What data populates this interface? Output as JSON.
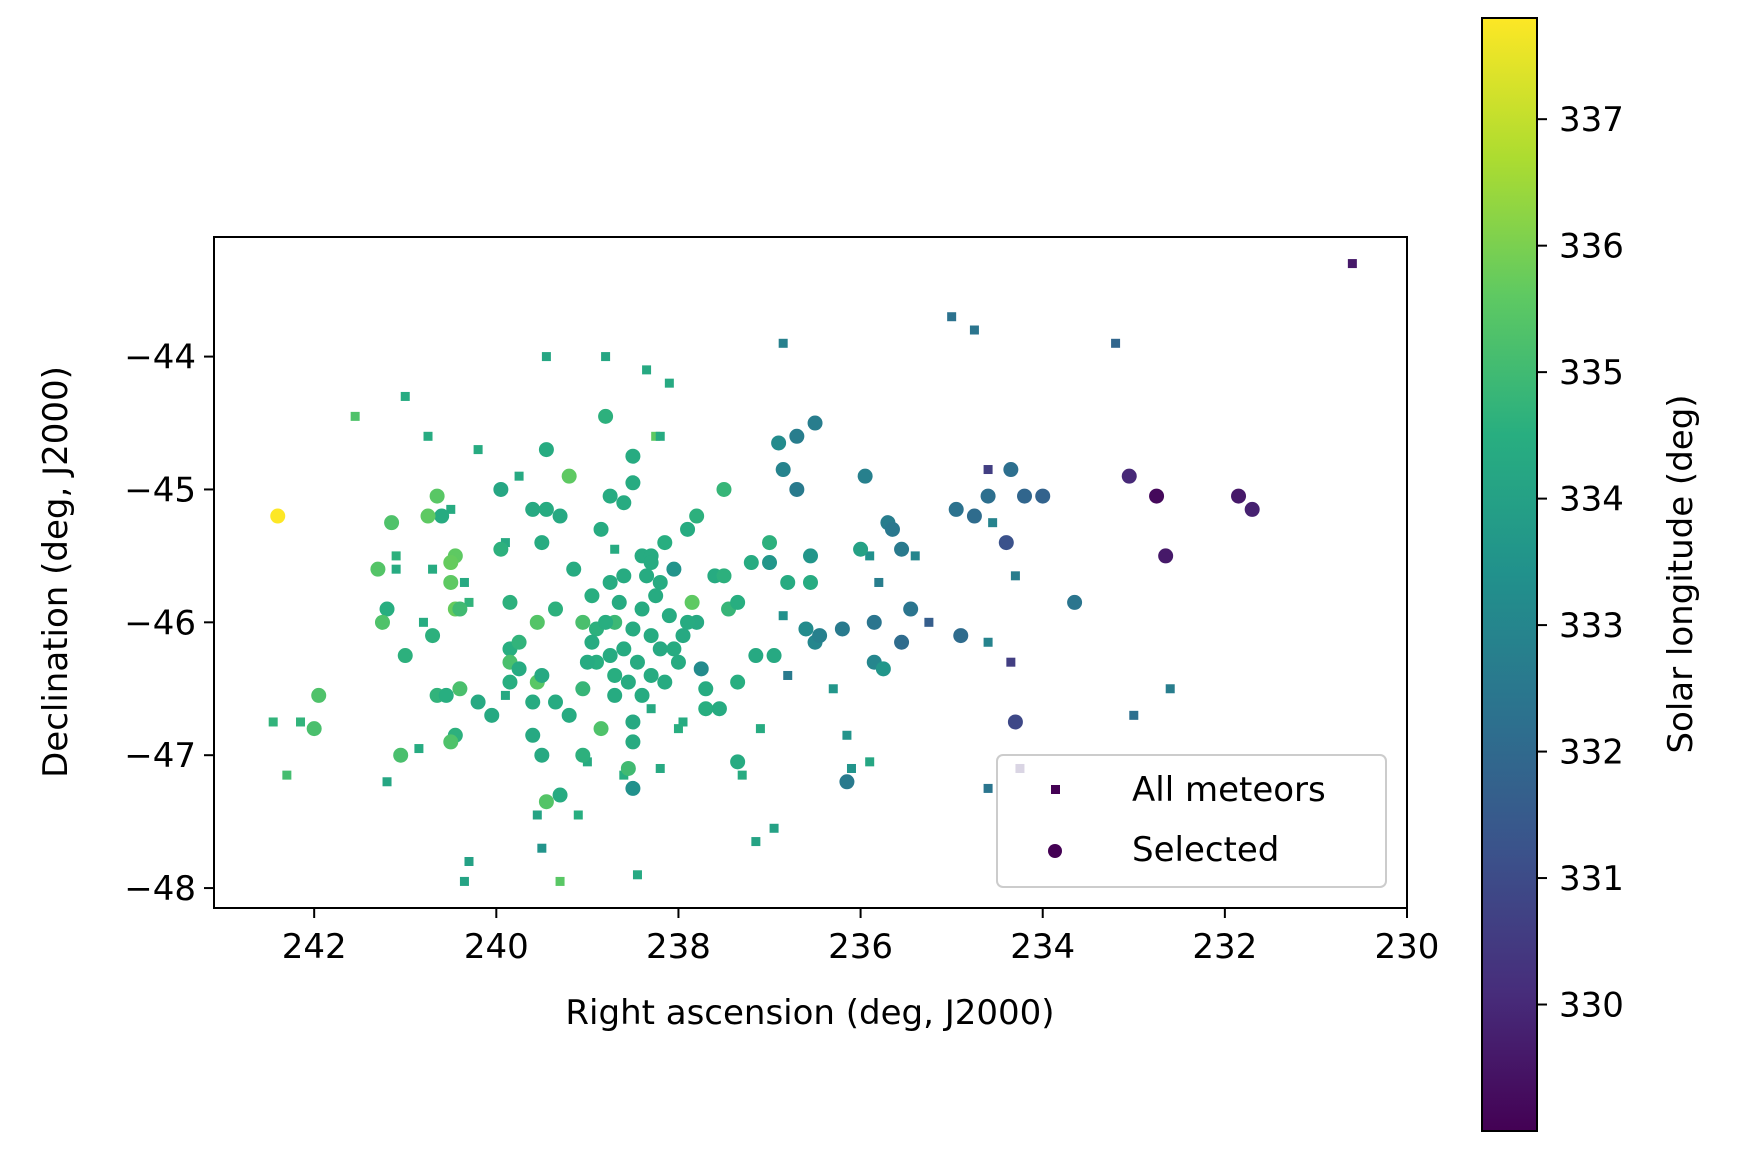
{
  "chart_data": {
    "type": "scatter",
    "xlabel": "Right ascension (deg, J2000)",
    "ylabel": "Declination (deg, J2000)",
    "xlim": [
      243.1,
      230.0
    ],
    "ylim": [
      -48.15,
      -43.1
    ],
    "x_inverted": true,
    "x_ticks": [
      242,
      240,
      238,
      236,
      234,
      232,
      230
    ],
    "y_ticks": [
      -44,
      -45,
      -46,
      -47,
      -48
    ],
    "x_tick_labels": [
      "242",
      "240",
      "238",
      "236",
      "234",
      "232",
      "230"
    ],
    "y_tick_labels": [
      "−44",
      "−45",
      "−46",
      "−47",
      "−48"
    ],
    "colorbar": {
      "label": "Solar longitude (deg)",
      "colormap": "viridis",
      "range": [
        329.0,
        337.8
      ],
      "ticks": [
        330,
        331,
        332,
        333,
        334,
        335,
        336,
        337
      ],
      "tick_labels": [
        "330",
        "331",
        "332",
        "333",
        "334",
        "335",
        "336",
        "337"
      ]
    },
    "legend": {
      "position": "lower-right"
    },
    "series": [
      {
        "name": "All meteors",
        "marker": "square",
        "points": [
          [
            230.6,
            -43.3,
            329.6
          ],
          [
            235.0,
            -43.7,
            332.3
          ],
          [
            234.75,
            -43.8,
            332.4
          ],
          [
            236.85,
            -43.9,
            332.8
          ],
          [
            233.2,
            -43.9,
            331.9
          ],
          [
            239.45,
            -44.0,
            334.2
          ],
          [
            238.8,
            -44.0,
            334.2
          ],
          [
            238.35,
            -44.1,
            334.3
          ],
          [
            238.1,
            -44.2,
            334.3
          ],
          [
            241.0,
            -44.3,
            334.4
          ],
          [
            241.55,
            -44.45,
            335.3
          ],
          [
            238.25,
            -44.6,
            335.6
          ],
          [
            238.2,
            -44.6,
            334.4
          ],
          [
            240.75,
            -44.6,
            334.4
          ],
          [
            240.2,
            -44.7,
            334.4
          ],
          [
            234.6,
            -44.85,
            330.6
          ],
          [
            239.75,
            -44.9,
            334.3
          ],
          [
            240.5,
            -45.15,
            334.4
          ],
          [
            234.55,
            -45.25,
            332.9
          ],
          [
            239.9,
            -45.4,
            334.3
          ],
          [
            238.7,
            -45.45,
            334.4
          ],
          [
            241.1,
            -45.5,
            334.6
          ],
          [
            235.9,
            -45.5,
            333.4
          ],
          [
            235.4,
            -45.5,
            333.0
          ],
          [
            241.1,
            -45.6,
            334.4
          ],
          [
            240.7,
            -45.6,
            334.4
          ],
          [
            234.3,
            -45.65,
            332.7
          ],
          [
            240.35,
            -45.7,
            334.3
          ],
          [
            235.8,
            -45.7,
            332.7
          ],
          [
            240.3,
            -45.85,
            334.7
          ],
          [
            236.85,
            -45.95,
            333.4
          ],
          [
            235.25,
            -46.0,
            331.6
          ],
          [
            240.8,
            -46.0,
            334.4
          ],
          [
            234.6,
            -46.15,
            332.9
          ],
          [
            234.35,
            -46.3,
            330.6
          ],
          [
            236.8,
            -46.4,
            332.6
          ],
          [
            236.3,
            -46.5,
            333.6
          ],
          [
            239.9,
            -46.55,
            334.3
          ],
          [
            238.3,
            -46.65,
            334.3
          ],
          [
            232.6,
            -46.5,
            332.7
          ],
          [
            233.0,
            -46.7,
            332.2
          ],
          [
            237.95,
            -46.75,
            334.4
          ],
          [
            242.45,
            -46.75,
            334.7
          ],
          [
            242.15,
            -46.75,
            334.7
          ],
          [
            237.1,
            -46.8,
            334.4
          ],
          [
            238.0,
            -46.8,
            334.5
          ],
          [
            236.15,
            -46.85,
            333.5
          ],
          [
            240.85,
            -46.95,
            334.4
          ],
          [
            241.2,
            -47.2,
            334.2
          ],
          [
            239.0,
            -47.05,
            334.4
          ],
          [
            238.2,
            -47.1,
            334.3
          ],
          [
            236.1,
            -47.1,
            333.5
          ],
          [
            235.9,
            -47.05,
            334.2
          ],
          [
            238.6,
            -47.15,
            334.5
          ],
          [
            237.3,
            -47.15,
            334.4
          ],
          [
            234.25,
            -47.1,
            330.1
          ],
          [
            234.6,
            -47.25,
            332.4
          ],
          [
            242.3,
            -47.15,
            335.1
          ],
          [
            236.95,
            -47.55,
            334.0
          ],
          [
            239.55,
            -47.45,
            334.1
          ],
          [
            239.1,
            -47.45,
            334.5
          ],
          [
            237.15,
            -47.65,
            334.1
          ],
          [
            239.5,
            -47.7,
            333.5
          ],
          [
            240.3,
            -47.8,
            334.0
          ],
          [
            240.35,
            -47.95,
            334.1
          ],
          [
            238.45,
            -47.9,
            334.3
          ],
          [
            239.3,
            -47.95,
            335.5
          ]
        ]
      },
      {
        "name": "Selected",
        "marker": "circle",
        "points": [
          [
            242.4,
            -45.2,
            337.8
          ],
          [
            241.95,
            -46.55,
            335.3
          ],
          [
            242.0,
            -46.8,
            335.2
          ],
          [
            241.15,
            -45.25,
            335.3
          ],
          [
            241.3,
            -45.6,
            335.4
          ],
          [
            241.2,
            -45.9,
            334.5
          ],
          [
            241.25,
            -46.0,
            335.3
          ],
          [
            241.0,
            -46.25,
            334.6
          ],
          [
            240.65,
            -45.05,
            335.5
          ],
          [
            240.6,
            -45.2,
            334.4
          ],
          [
            240.75,
            -45.2,
            335.6
          ],
          [
            240.45,
            -45.5,
            335.6
          ],
          [
            240.5,
            -45.55,
            335.7
          ],
          [
            240.5,
            -45.7,
            335.6
          ],
          [
            240.45,
            -45.9,
            335.7
          ],
          [
            240.4,
            -45.9,
            335.0
          ],
          [
            240.7,
            -46.1,
            334.6
          ],
          [
            240.65,
            -46.55,
            334.7
          ],
          [
            240.55,
            -46.55,
            334.5
          ],
          [
            240.4,
            -46.5,
            335.2
          ],
          [
            240.45,
            -46.85,
            334.6
          ],
          [
            240.5,
            -46.9,
            335.3
          ],
          [
            240.2,
            -46.6,
            334.3
          ],
          [
            240.05,
            -46.7,
            334.3
          ],
          [
            241.05,
            -47.0,
            335.2
          ],
          [
            239.95,
            -45.0,
            334.2
          ],
          [
            239.95,
            -45.45,
            334.6
          ],
          [
            239.45,
            -44.7,
            334.4
          ],
          [
            239.6,
            -45.15,
            334.3
          ],
          [
            239.45,
            -45.15,
            334.4
          ],
          [
            239.5,
            -45.4,
            334.4
          ],
          [
            239.3,
            -45.2,
            334.3
          ],
          [
            239.2,
            -44.9,
            335.6
          ],
          [
            239.85,
            -45.85,
            334.6
          ],
          [
            239.85,
            -46.2,
            334.5
          ],
          [
            239.85,
            -46.3,
            335.2
          ],
          [
            239.85,
            -46.45,
            334.5
          ],
          [
            239.75,
            -46.15,
            334.7
          ],
          [
            239.75,
            -46.35,
            334.4
          ],
          [
            239.55,
            -46.45,
            335.5
          ],
          [
            239.55,
            -46.0,
            335.4
          ],
          [
            239.5,
            -46.4,
            334.3
          ],
          [
            239.5,
            -47.0,
            334.3
          ],
          [
            239.45,
            -47.35,
            335.4
          ],
          [
            239.6,
            -46.85,
            334.3
          ],
          [
            239.6,
            -46.6,
            334.4
          ],
          [
            239.35,
            -45.9,
            334.6
          ],
          [
            239.35,
            -46.6,
            334.4
          ],
          [
            239.3,
            -47.3,
            334.4
          ],
          [
            239.2,
            -46.7,
            334.4
          ],
          [
            239.05,
            -46.5,
            334.8
          ],
          [
            239.05,
            -46.0,
            335.2
          ],
          [
            239.05,
            -47.0,
            334.6
          ],
          [
            239.15,
            -45.6,
            334.4
          ],
          [
            238.95,
            -45.8,
            334.5
          ],
          [
            238.85,
            -45.3,
            334.4
          ],
          [
            238.8,
            -44.45,
            334.6
          ],
          [
            238.75,
            -45.05,
            334.4
          ],
          [
            238.85,
            -46.8,
            335.3
          ],
          [
            238.9,
            -46.05,
            334.6
          ],
          [
            238.7,
            -46.0,
            334.9
          ],
          [
            238.7,
            -46.4,
            334.5
          ],
          [
            238.6,
            -45.1,
            334.4
          ],
          [
            238.5,
            -44.95,
            334.4
          ],
          [
            238.5,
            -44.75,
            334.4
          ],
          [
            238.5,
            -46.75,
            334.3
          ],
          [
            238.5,
            -46.9,
            334.4
          ],
          [
            238.5,
            -47.25,
            333.4
          ],
          [
            238.55,
            -47.1,
            335.0
          ],
          [
            238.4,
            -45.5,
            334.4
          ],
          [
            238.3,
            -45.5,
            334.4
          ],
          [
            238.2,
            -45.7,
            334.4
          ],
          [
            238.15,
            -45.4,
            334.5
          ],
          [
            238.05,
            -45.6,
            333.5
          ],
          [
            237.9,
            -45.3,
            334.4
          ],
          [
            237.85,
            -45.85,
            335.6
          ],
          [
            237.8,
            -45.2,
            334.6
          ],
          [
            237.8,
            -46.0,
            334.3
          ],
          [
            237.75,
            -46.35,
            333.2
          ],
          [
            237.7,
            -46.5,
            334.4
          ],
          [
            237.7,
            -46.65,
            334.5
          ],
          [
            237.6,
            -45.65,
            334.4
          ],
          [
            237.55,
            -46.65,
            334.4
          ],
          [
            237.5,
            -45.0,
            334.8
          ],
          [
            237.5,
            -45.65,
            334.6
          ],
          [
            237.45,
            -45.9,
            334.8
          ],
          [
            237.35,
            -45.85,
            334.5
          ],
          [
            237.35,
            -46.45,
            334.5
          ],
          [
            237.35,
            -47.05,
            334.4
          ],
          [
            237.2,
            -45.55,
            334.4
          ],
          [
            237.15,
            -46.25,
            334.3
          ],
          [
            237.0,
            -45.4,
            334.6
          ],
          [
            237.0,
            -45.55,
            333.6
          ],
          [
            236.95,
            -46.25,
            334.3
          ],
          [
            236.9,
            -44.65,
            333.2
          ],
          [
            236.85,
            -44.85,
            332.9
          ],
          [
            236.7,
            -45.0,
            332.6
          ],
          [
            236.7,
            -44.6,
            332.7
          ],
          [
            236.8,
            -45.7,
            334.4
          ],
          [
            236.55,
            -45.7,
            334.4
          ],
          [
            236.55,
            -45.5,
            333.6
          ],
          [
            236.5,
            -44.5,
            332.7
          ],
          [
            236.6,
            -46.05,
            333.2
          ],
          [
            236.5,
            -46.15,
            333.0
          ],
          [
            236.45,
            -46.1,
            332.8
          ],
          [
            236.2,
            -46.05,
            332.6
          ],
          [
            236.15,
            -47.2,
            332.6
          ],
          [
            236.0,
            -45.45,
            334.0
          ],
          [
            235.95,
            -44.9,
            332.8
          ],
          [
            235.85,
            -46.3,
            333.0
          ],
          [
            235.75,
            -46.35,
            333.6
          ],
          [
            235.7,
            -45.25,
            332.7
          ],
          [
            235.65,
            -45.3,
            332.5
          ],
          [
            235.55,
            -45.45,
            332.6
          ],
          [
            235.45,
            -45.9,
            332.4
          ],
          [
            235.55,
            -46.15,
            332.1
          ],
          [
            235.85,
            -46.0,
            332.4
          ],
          [
            234.95,
            -45.15,
            332.3
          ],
          [
            234.75,
            -45.2,
            332.1
          ],
          [
            234.6,
            -45.05,
            332.2
          ],
          [
            234.9,
            -46.1,
            332.1
          ],
          [
            234.4,
            -45.4,
            331.2
          ],
          [
            234.3,
            -46.75,
            330.9
          ],
          [
            234.35,
            -44.85,
            332.2
          ],
          [
            234.2,
            -45.05,
            331.9
          ],
          [
            234.0,
            -45.05,
            331.8
          ],
          [
            233.65,
            -45.85,
            332.4
          ],
          [
            233.05,
            -44.9,
            330.0
          ],
          [
            232.75,
            -45.05,
            329.2
          ],
          [
            232.65,
            -45.5,
            329.6
          ],
          [
            231.85,
            -45.05,
            329.6
          ],
          [
            231.7,
            -45.15,
            329.8
          ],
          [
            238.5,
            -46.05,
            334.4
          ],
          [
            238.3,
            -46.1,
            334.4
          ],
          [
            238.4,
            -45.9,
            334.4
          ],
          [
            238.6,
            -46.2,
            334.4
          ],
          [
            238.2,
            -46.2,
            334.3
          ],
          [
            238.1,
            -45.95,
            334.4
          ],
          [
            237.95,
            -46.1,
            334.3
          ],
          [
            238.45,
            -46.3,
            334.4
          ],
          [
            238.75,
            -45.7,
            334.4
          ],
          [
            238.25,
            -45.8,
            334.4
          ],
          [
            238.9,
            -46.3,
            334.5
          ],
          [
            238.3,
            -46.4,
            334.4
          ],
          [
            238.0,
            -46.3,
            334.4
          ],
          [
            238.65,
            -45.85,
            334.4
          ],
          [
            238.35,
            -45.65,
            334.4
          ],
          [
            238.55,
            -46.45,
            334.4
          ],
          [
            238.05,
            -46.2,
            334.4
          ],
          [
            238.8,
            -46.0,
            334.5
          ],
          [
            238.15,
            -46.45,
            334.4
          ],
          [
            239.0,
            -46.3,
            334.4
          ],
          [
            238.95,
            -46.15,
            334.4
          ],
          [
            238.6,
            -45.65,
            334.4
          ],
          [
            238.4,
            -46.55,
            334.4
          ],
          [
            238.7,
            -46.55,
            334.4
          ],
          [
            238.3,
            -45.55,
            334.4
          ],
          [
            237.9,
            -46.0,
            334.4
          ],
          [
            238.75,
            -46.25,
            334.4
          ]
        ]
      }
    ]
  }
}
